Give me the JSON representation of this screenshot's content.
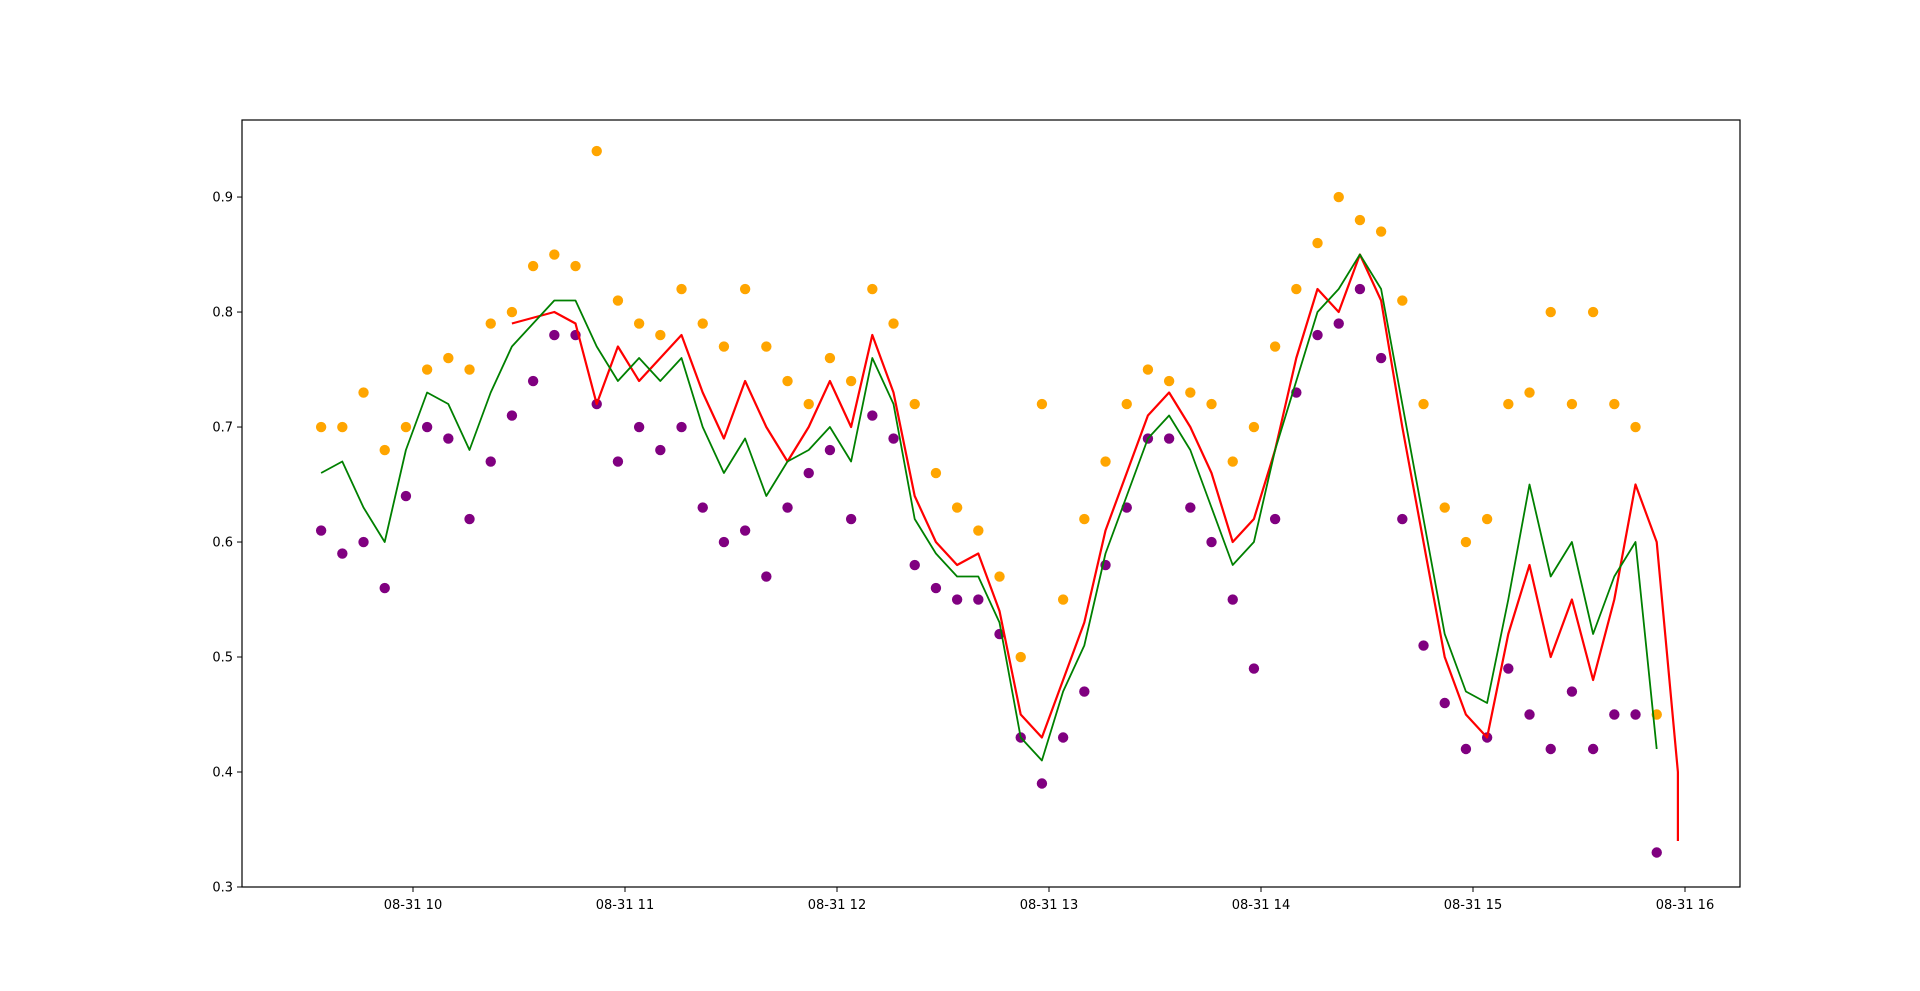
{
  "chart_data": {
    "type": "scatter",
    "title": "",
    "xlabel": "",
    "ylabel": "",
    "x_ticks": [
      "08-31 10",
      "08-31 11",
      "08-31 12",
      "08-31 13",
      "08-31 14",
      "08-31 15",
      "08-31 16"
    ],
    "y_ticks": [
      "0.3",
      "0.4",
      "0.5",
      "0.6",
      "0.7",
      "0.8",
      "0.9"
    ],
    "xlim": [
      "08-31 09:11",
      "08-31 16:19"
    ],
    "ylim": [
      0.3,
      0.967
    ],
    "grid": false,
    "legend": "none",
    "colors": {
      "orange": "#ffa500",
      "purple": "#800080",
      "red": "#ff0000",
      "green": "#008000"
    },
    "series": [
      {
        "kind": "scatter",
        "color": "orange",
        "points": [
          [
            "09:34",
            0.7
          ],
          [
            "09:40",
            0.7
          ],
          [
            "09:46",
            0.73
          ],
          [
            "09:52",
            0.68
          ],
          [
            "09:58",
            0.7
          ],
          [
            "10:04",
            0.75
          ],
          [
            "10:10",
            0.76
          ],
          [
            "10:16",
            0.75
          ],
          [
            "10:22",
            0.79
          ],
          [
            "10:28",
            0.8
          ],
          [
            "10:34",
            0.84
          ],
          [
            "10:40",
            0.85
          ],
          [
            "10:46",
            0.84
          ],
          [
            "10:52",
            0.94
          ],
          [
            "10:58",
            0.81
          ],
          [
            "11:04",
            0.79
          ],
          [
            "11:10",
            0.78
          ],
          [
            "11:16",
            0.82
          ],
          [
            "11:22",
            0.79
          ],
          [
            "11:28",
            0.77
          ],
          [
            "11:34",
            0.82
          ],
          [
            "11:40",
            0.77
          ],
          [
            "11:46",
            0.74
          ],
          [
            "11:52",
            0.72
          ],
          [
            "11:58",
            0.76
          ],
          [
            "12:04",
            0.74
          ],
          [
            "12:10",
            0.82
          ],
          [
            "12:16",
            0.79
          ],
          [
            "12:22",
            0.72
          ],
          [
            "12:28",
            0.66
          ],
          [
            "12:34",
            0.63
          ],
          [
            "12:40",
            0.61
          ],
          [
            "12:46",
            0.57
          ],
          [
            "12:52",
            0.5
          ],
          [
            "12:58",
            0.72
          ],
          [
            "13:04",
            0.55
          ],
          [
            "13:10",
            0.62
          ],
          [
            "13:16",
            0.67
          ],
          [
            "13:22",
            0.72
          ],
          [
            "13:28",
            0.75
          ],
          [
            "13:34",
            0.74
          ],
          [
            "13:40",
            0.73
          ],
          [
            "13:46",
            0.72
          ],
          [
            "13:52",
            0.67
          ],
          [
            "13:58",
            0.7
          ],
          [
            "14:04",
            0.77
          ],
          [
            "14:10",
            0.82
          ],
          [
            "14:16",
            0.86
          ],
          [
            "14:22",
            0.9
          ],
          [
            "14:28",
            0.88
          ],
          [
            "14:34",
            0.87
          ],
          [
            "14:40",
            0.81
          ],
          [
            "14:46",
            0.72
          ],
          [
            "14:52",
            0.63
          ],
          [
            "14:58",
            0.6
          ],
          [
            "15:04",
            0.62
          ],
          [
            "15:10",
            0.72
          ],
          [
            "15:16",
            0.73
          ],
          [
            "15:22",
            0.8
          ],
          [
            "15:28",
            0.72
          ],
          [
            "15:34",
            0.8
          ],
          [
            "15:40",
            0.72
          ],
          [
            "15:46",
            0.7
          ],
          [
            "15:52",
            0.45
          ]
        ]
      },
      {
        "kind": "scatter",
        "color": "purple",
        "points": [
          [
            "09:34",
            0.61
          ],
          [
            "09:40",
            0.59
          ],
          [
            "09:46",
            0.6
          ],
          [
            "09:52",
            0.56
          ],
          [
            "09:58",
            0.64
          ],
          [
            "10:04",
            0.7
          ],
          [
            "10:10",
            0.69
          ],
          [
            "10:16",
            0.62
          ],
          [
            "10:22",
            0.67
          ],
          [
            "10:28",
            0.71
          ],
          [
            "10:34",
            0.74
          ],
          [
            "10:40",
            0.78
          ],
          [
            "10:46",
            0.78
          ],
          [
            "10:52",
            0.72
          ],
          [
            "10:58",
            0.67
          ],
          [
            "11:04",
            0.7
          ],
          [
            "11:10",
            0.68
          ],
          [
            "11:16",
            0.7
          ],
          [
            "11:22",
            0.63
          ],
          [
            "11:28",
            0.6
          ],
          [
            "11:34",
            0.61
          ],
          [
            "11:40",
            0.57
          ],
          [
            "11:46",
            0.63
          ],
          [
            "11:52",
            0.66
          ],
          [
            "11:58",
            0.68
          ],
          [
            "12:04",
            0.62
          ],
          [
            "12:10",
            0.71
          ],
          [
            "12:16",
            0.69
          ],
          [
            "12:22",
            0.58
          ],
          [
            "12:28",
            0.56
          ],
          [
            "12:34",
            0.55
          ],
          [
            "12:40",
            0.55
          ],
          [
            "12:46",
            0.52
          ],
          [
            "12:52",
            0.43
          ],
          [
            "12:58",
            0.39
          ],
          [
            "13:04",
            0.43
          ],
          [
            "13:10",
            0.47
          ],
          [
            "13:16",
            0.58
          ],
          [
            "13:22",
            0.63
          ],
          [
            "13:28",
            0.69
          ],
          [
            "13:34",
            0.69
          ],
          [
            "13:40",
            0.63
          ],
          [
            "13:46",
            0.6
          ],
          [
            "13:52",
            0.55
          ],
          [
            "13:58",
            0.49
          ],
          [
            "14:04",
            0.62
          ],
          [
            "14:10",
            0.73
          ],
          [
            "14:16",
            0.78
          ],
          [
            "14:22",
            0.79
          ],
          [
            "14:28",
            0.82
          ],
          [
            "14:34",
            0.76
          ],
          [
            "14:40",
            0.62
          ],
          [
            "14:46",
            0.51
          ],
          [
            "14:52",
            0.46
          ],
          [
            "14:58",
            0.42
          ],
          [
            "15:04",
            0.43
          ],
          [
            "15:10",
            0.49
          ],
          [
            "15:16",
            0.45
          ],
          [
            "15:22",
            0.42
          ],
          [
            "15:28",
            0.47
          ],
          [
            "15:34",
            0.42
          ],
          [
            "15:40",
            0.45
          ],
          [
            "15:46",
            0.45
          ],
          [
            "15:52",
            0.33
          ]
        ]
      },
      {
        "kind": "line",
        "color": "red",
        "points": [
          [
            "10:28",
            0.79
          ],
          [
            "10:40",
            0.8
          ],
          [
            "10:46",
            0.79
          ],
          [
            "10:52",
            0.72
          ],
          [
            "10:58",
            0.77
          ],
          [
            "11:04",
            0.74
          ],
          [
            "11:10",
            0.76
          ],
          [
            "11:16",
            0.78
          ],
          [
            "11:22",
            0.73
          ],
          [
            "11:28",
            0.69
          ],
          [
            "11:34",
            0.74
          ],
          [
            "11:40",
            0.7
          ],
          [
            "11:46",
            0.67
          ],
          [
            "11:52",
            0.7
          ],
          [
            "11:58",
            0.74
          ],
          [
            "12:04",
            0.7
          ],
          [
            "12:10",
            0.78
          ],
          [
            "12:16",
            0.73
          ],
          [
            "12:22",
            0.64
          ],
          [
            "12:28",
            0.6
          ],
          [
            "12:34",
            0.58
          ],
          [
            "12:40",
            0.59
          ],
          [
            "12:46",
            0.54
          ],
          [
            "12:52",
            0.45
          ],
          [
            "12:58",
            0.43
          ],
          [
            "13:04",
            0.48
          ],
          [
            "13:10",
            0.53
          ],
          [
            "13:16",
            0.61
          ],
          [
            "13:22",
            0.66
          ],
          [
            "13:28",
            0.71
          ],
          [
            "13:34",
            0.73
          ],
          [
            "13:40",
            0.7
          ],
          [
            "13:46",
            0.66
          ],
          [
            "13:52",
            0.6
          ],
          [
            "13:58",
            0.62
          ],
          [
            "14:04",
            0.68
          ],
          [
            "14:10",
            0.76
          ],
          [
            "14:16",
            0.82
          ],
          [
            "14:22",
            0.8
          ],
          [
            "14:28",
            0.85
          ],
          [
            "14:34",
            0.81
          ],
          [
            "14:40",
            0.7
          ],
          [
            "14:46",
            0.6
          ],
          [
            "14:52",
            0.5
          ],
          [
            "14:58",
            0.45
          ],
          [
            "15:04",
            0.43
          ],
          [
            "15:10",
            0.52
          ],
          [
            "15:16",
            0.58
          ],
          [
            "15:22",
            0.5
          ],
          [
            "15:28",
            0.55
          ],
          [
            "15:34",
            0.48
          ],
          [
            "15:40",
            0.55
          ],
          [
            "15:46",
            0.65
          ],
          [
            "15:52",
            0.6
          ],
          [
            "15:58",
            0.4
          ],
          [
            "15:58",
            0.34
          ]
        ]
      },
      {
        "kind": "line",
        "color": "green",
        "points": [
          [
            "09:34",
            0.66
          ],
          [
            "09:40",
            0.67
          ],
          [
            "09:46",
            0.63
          ],
          [
            "09:52",
            0.6
          ],
          [
            "09:58",
            0.68
          ],
          [
            "10:04",
            0.73
          ],
          [
            "10:10",
            0.72
          ],
          [
            "10:16",
            0.68
          ],
          [
            "10:22",
            0.73
          ],
          [
            "10:28",
            0.77
          ],
          [
            "10:34",
            0.79
          ],
          [
            "10:40",
            0.81
          ],
          [
            "10:46",
            0.81
          ],
          [
            "10:52",
            0.77
          ],
          [
            "10:58",
            0.74
          ],
          [
            "11:04",
            0.76
          ],
          [
            "11:10",
            0.74
          ],
          [
            "11:16",
            0.76
          ],
          [
            "11:22",
            0.7
          ],
          [
            "11:28",
            0.66
          ],
          [
            "11:34",
            0.69
          ],
          [
            "11:40",
            0.64
          ],
          [
            "11:46",
            0.67
          ],
          [
            "11:52",
            0.68
          ],
          [
            "11:58",
            0.7
          ],
          [
            "12:04",
            0.67
          ],
          [
            "12:10",
            0.76
          ],
          [
            "12:16",
            0.72
          ],
          [
            "12:22",
            0.62
          ],
          [
            "12:28",
            0.59
          ],
          [
            "12:34",
            0.57
          ],
          [
            "12:40",
            0.57
          ],
          [
            "12:46",
            0.53
          ],
          [
            "12:52",
            0.43
          ],
          [
            "12:58",
            0.41
          ],
          [
            "13:04",
            0.47
          ],
          [
            "13:10",
            0.51
          ],
          [
            "13:16",
            0.59
          ],
          [
            "13:22",
            0.64
          ],
          [
            "13:28",
            0.69
          ],
          [
            "13:34",
            0.71
          ],
          [
            "13:40",
            0.68
          ],
          [
            "13:46",
            0.63
          ],
          [
            "13:52",
            0.58
          ],
          [
            "13:58",
            0.6
          ],
          [
            "14:04",
            0.68
          ],
          [
            "14:10",
            0.74
          ],
          [
            "14:16",
            0.8
          ],
          [
            "14:22",
            0.82
          ],
          [
            "14:28",
            0.85
          ],
          [
            "14:34",
            0.82
          ],
          [
            "14:40",
            0.72
          ],
          [
            "14:46",
            0.62
          ],
          [
            "14:52",
            0.52
          ],
          [
            "14:58",
            0.47
          ],
          [
            "15:04",
            0.46
          ],
          [
            "15:10",
            0.55
          ],
          [
            "15:16",
            0.65
          ],
          [
            "15:22",
            0.57
          ],
          [
            "15:28",
            0.6
          ],
          [
            "15:34",
            0.52
          ],
          [
            "15:40",
            0.57
          ],
          [
            "15:46",
            0.6
          ],
          [
            "15:52",
            0.42
          ]
        ]
      }
    ]
  }
}
